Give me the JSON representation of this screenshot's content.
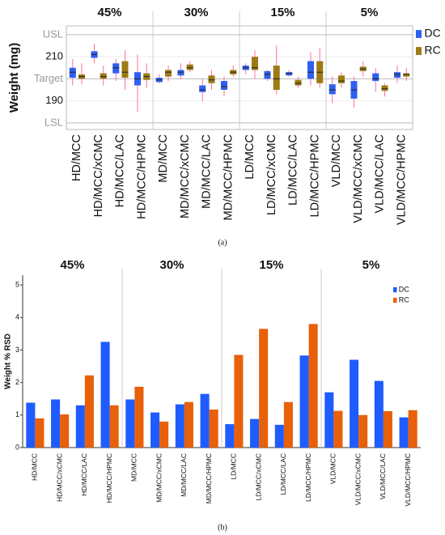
{
  "chart_data": [
    {
      "type": "box",
      "caption": "(a)",
      "y_label": "Weight (mg)",
      "groups": [
        "45%",
        "30%",
        "15%",
        "5%"
      ],
      "categories": [
        "HD/MCC",
        "HD/MCC/xCMC",
        "HD/MCC/LAC",
        "HD/MCC/HPMC",
        "MD/MCC",
        "MD/MCC/xCMC",
        "MD/MCC/LAC",
        "MD/MCC/HPMC",
        "LD/MCC",
        "LD/MCC/xCMC",
        "LD/MCC/LAC",
        "LD/MCC/HPMC",
        "VLD/MCC",
        "VLD/MCC/xCMC",
        "VLD/MCC/LAC",
        "VLD/MCC/HPMC"
      ],
      "ylim": [
        177,
        224
      ],
      "yticks": [
        {
          "value": 220,
          "label": "USL"
        },
        210,
        {
          "value": 200,
          "label": "Target"
        },
        190,
        {
          "value": 180,
          "label": "LSL"
        }
      ],
      "grid": true,
      "legend": "right",
      "series": [
        {
          "name": "DC",
          "color": "#2f5ff0",
          "values": [
            {
              "min": 197,
              "q1": 200.5,
              "median": 203,
              "q3": 205,
              "max": 209
            },
            {
              "min": 207,
              "q1": 209.5,
              "median": 211,
              "q3": 212.5,
              "max": 216
            },
            {
              "min": 199,
              "q1": 202.5,
              "median": 205,
              "q3": 207,
              "max": 209
            },
            {
              "min": 185,
              "q1": 197,
              "median": 200,
              "q3": 203,
              "max": 211
            },
            {
              "min": 198,
              "q1": 198.5,
              "median": 199.5,
              "q3": 200.5,
              "max": 202
            },
            {
              "min": 200,
              "q1": 201.5,
              "median": 203,
              "q3": 204,
              "max": 207
            },
            {
              "min": 190,
              "q1": 194,
              "median": 195,
              "q3": 197,
              "max": 200
            },
            {
              "min": 192,
              "q1": 195,
              "median": 196.5,
              "q3": 199,
              "max": 201
            },
            {
              "min": 202,
              "q1": 204,
              "median": 205,
              "q3": 206,
              "max": 207
            },
            {
              "min": 199,
              "q1": 200,
              "median": 202,
              "q3": 203.5,
              "max": 204
            },
            {
              "min": 201,
              "q1": 201.5,
              "median": 202.5,
              "q3": 203,
              "max": 204
            },
            {
              "min": 197,
              "q1": 200,
              "median": 203,
              "q3": 208,
              "max": 212
            },
            {
              "min": 189,
              "q1": 193,
              "median": 195,
              "q3": 197.5,
              "max": 201
            },
            {
              "min": 187,
              "q1": 191,
              "median": 195,
              "q3": 199,
              "max": 201
            },
            {
              "min": 194,
              "q1": 199,
              "median": 200,
              "q3": 202.5,
              "max": 205
            },
            {
              "min": 198,
              "q1": 200.5,
              "median": 202,
              "q3": 203,
              "max": 206
            }
          ]
        },
        {
          "name": "RC",
          "color": "#9c7a14",
          "values": [
            {
              "min": 197.5,
              "q1": 200,
              "median": 201,
              "q3": 202,
              "max": 207
            },
            {
              "min": 197,
              "q1": 200,
              "median": 201,
              "q3": 202.5,
              "max": 206
            },
            {
              "min": 195,
              "q1": 200.5,
              "median": 203,
              "q3": 208,
              "max": 213
            },
            {
              "min": 196,
              "q1": 199.5,
              "median": 201,
              "q3": 202.5,
              "max": 207
            },
            {
              "min": 199,
              "q1": 201,
              "median": 203,
              "q3": 204,
              "max": 206
            },
            {
              "min": 203,
              "q1": 204,
              "median": 205,
              "q3": 206.5,
              "max": 208
            },
            {
              "min": 195,
              "q1": 198,
              "median": 199.5,
              "q3": 201.5,
              "max": 204
            },
            {
              "min": 201,
              "q1": 202,
              "median": 203,
              "q3": 204,
              "max": 206
            },
            {
              "min": 200,
              "q1": 204,
              "median": 205,
              "q3": 210,
              "max": 213
            },
            {
              "min": 193,
              "q1": 195,
              "median": 200,
              "q3": 206,
              "max": 215
            },
            {
              "min": 196,
              "q1": 197,
              "median": 198,
              "q3": 199.5,
              "max": 201
            },
            {
              "min": 196,
              "q1": 198,
              "median": 203,
              "q3": 208,
              "max": 214
            },
            {
              "min": 196,
              "q1": 198,
              "median": 199,
              "q3": 201.5,
              "max": 203
            },
            {
              "min": 201,
              "q1": 203.5,
              "median": 204.5,
              "q3": 205.5,
              "max": 208
            },
            {
              "min": 192,
              "q1": 194.5,
              "median": 195.5,
              "q3": 197,
              "max": 198
            },
            {
              "min": 199,
              "q1": 201,
              "median": 202,
              "q3": 202.5,
              "max": 205
            }
          ]
        }
      ]
    },
    {
      "type": "bar",
      "caption": "(b)",
      "y_label": "Weight % RSD",
      "groups": [
        "45%",
        "30%",
        "15%",
        "5%"
      ],
      "categories": [
        "HD/MCC",
        "HD/MCC/xCMC",
        "HD/MCC/LAC",
        "HD/MCC/HPMC",
        "MD/MCC",
        "MD/MCC/xCMC",
        "MD/MCC/LAC",
        "MD/MCC/HPMC",
        "LD/MCC",
        "LD/MCC/xCMC",
        "LD/MCC/LAC",
        "LD/MCC/HPMC",
        "VLD/MCC",
        "VLD/MCC/xCMC",
        "VLD/MCC/LAC",
        "VLD/MCC/HPMC"
      ],
      "ylim": [
        0,
        5.3
      ],
      "yticks": [
        0,
        1,
        2,
        3,
        4,
        5
      ],
      "grid": false,
      "legend": "upper right",
      "series": [
        {
          "name": "DC",
          "color": "#1f5cff",
          "values": [
            1.38,
            1.48,
            1.3,
            3.25,
            1.48,
            1.08,
            1.33,
            1.65,
            0.72,
            0.88,
            0.7,
            2.83,
            1.7,
            2.7,
            2.05,
            0.93
          ]
        },
        {
          "name": "RC",
          "color": "#e8600a",
          "values": [
            0.9,
            1.02,
            2.22,
            1.3,
            1.87,
            0.8,
            1.4,
            1.17,
            2.85,
            3.65,
            1.4,
            3.8,
            1.13,
            1.0,
            1.12,
            1.15
          ]
        }
      ]
    }
  ]
}
